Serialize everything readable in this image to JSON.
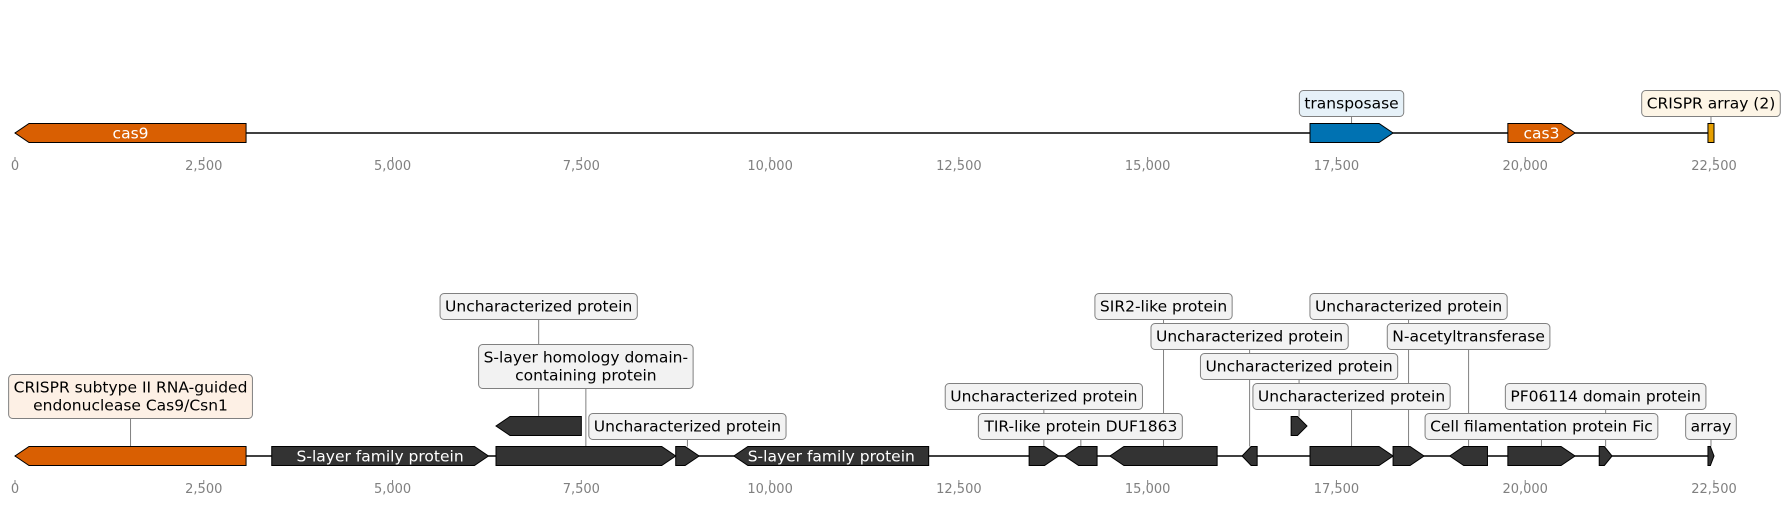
{
  "chart_data": {
    "type": "gene-map",
    "xlim": [
      0,
      22500
    ],
    "tracks": [
      {
        "ticks": [
          0,
          2500,
          5000,
          7500,
          10000,
          12500,
          15000,
          17500,
          20000,
          22500
        ],
        "tick_labels": [
          "0",
          "2,500",
          "5,000",
          "7,500",
          "10,000",
          "12,500",
          "15,000",
          "17,500",
          "20,000",
          "22,500"
        ],
        "features": [
          {
            "start": 0,
            "end": 3060,
            "strand": -1,
            "color": "#d95f02",
            "label": "cas9",
            "label_pos": "inside"
          },
          {
            "start": 17150,
            "end": 18250,
            "strand": 1,
            "color": "#0072b2",
            "label": "transposase",
            "label_pos": "above",
            "box_fill": "#e6f1f8"
          },
          {
            "start": 19770,
            "end": 20660,
            "strand": 1,
            "color": "#d95f02",
            "label": "cas3",
            "label_pos": "inside"
          },
          {
            "start": 22420,
            "end": 22500,
            "strand": 0,
            "color": "#e69f00",
            "label": "CRISPR array (2)",
            "label_pos": "above",
            "box_fill": "#fdf5e6"
          }
        ]
      },
      {
        "ticks": [
          0,
          2500,
          5000,
          7500,
          10000,
          12500,
          15000,
          17500,
          20000,
          22500
        ],
        "tick_labels": [
          "0",
          "2,500",
          "5,000",
          "7,500",
          "10,000",
          "12,500",
          "15,000",
          "17,500",
          "20,000",
          "22,500"
        ],
        "features": [
          {
            "start": 0,
            "end": 3060,
            "strand": -1,
            "color": "#d95f02",
            "label": "CRISPR subtype II RNA-guided\nendonuclease Cas9/Csn1",
            "level": 1,
            "box_fill": "#fdf0e5"
          },
          {
            "start": 3400,
            "end": 6270,
            "strand": 1,
            "color": "#333333",
            "label": "S-layer family protein",
            "label_pos": "inside"
          },
          {
            "start": 6370,
            "end": 7500,
            "strand": -1,
            "color": "#333333",
            "row": 1,
            "label": "Uncharacterized protein",
            "level": 4,
            "box_fill": "#f2f2f2"
          },
          {
            "start": 6370,
            "end": 8750,
            "strand": 1,
            "color": "#333333",
            "label": "S-layer homology domain-\ncontaining protein",
            "level": 2,
            "box_fill": "#f2f2f2"
          },
          {
            "start": 8750,
            "end": 9060,
            "strand": 1,
            "color": "#333333",
            "label": "Uncharacterized protein",
            "level": 0,
            "box_fill": "#f2f2f2"
          },
          {
            "start": 9520,
            "end": 12100,
            "strand": -1,
            "color": "#333333",
            "label": "S-layer family protein",
            "label_pos": "inside"
          },
          {
            "start": 13430,
            "end": 13820,
            "strand": 1,
            "color": "#333333",
            "label": "Uncharacterized protein",
            "level": 1,
            "box_fill": "#f2f2f2"
          },
          {
            "start": 13900,
            "end": 14330,
            "strand": -1,
            "color": "#333333",
            "label": "TIR-like protein DUF1863",
            "level": 0,
            "box_fill": "#f2f2f2"
          },
          {
            "start": 14500,
            "end": 15920,
            "strand": -1,
            "color": "#333333",
            "label": "SIR2-like protein",
            "level": 4,
            "box_fill": "#f2f2f2"
          },
          {
            "start": 16250,
            "end": 16450,
            "strand": -1,
            "color": "#333333",
            "label": "Uncharacterized protein",
            "level": 3,
            "box_fill": "#f2f2f2"
          },
          {
            "start": 16900,
            "end": 17110,
            "strand": 1,
            "color": "#333333",
            "row": 1,
            "label": "Uncharacterized protein",
            "level": 2,
            "box_fill": "#f2f2f2"
          },
          {
            "start": 17150,
            "end": 18250,
            "strand": 1,
            "color": "#333333",
            "label": "Uncharacterized protein",
            "level": 1,
            "box_fill": "#f2f2f2"
          },
          {
            "start": 18250,
            "end": 18660,
            "strand": 1,
            "color": "#333333",
            "label": "Uncharacterized protein",
            "level": 4,
            "box_fill": "#f2f2f2"
          },
          {
            "start": 19000,
            "end": 19500,
            "strand": -1,
            "color": "#333333",
            "label": "N-acetyltransferase",
            "level": 3,
            "box_fill": "#f2f2f2"
          },
          {
            "start": 19770,
            "end": 20660,
            "strand": 1,
            "color": "#333333",
            "label": "Cell filamentation protein Fic",
            "level": 0,
            "box_fill": "#f2f2f2"
          },
          {
            "start": 20980,
            "end": 21150,
            "strand": 1,
            "color": "#333333",
            "label": "PF06114 domain protein",
            "level": 1,
            "box_fill": "#f2f2f2"
          },
          {
            "start": 22420,
            "end": 22500,
            "strand": 1,
            "color": "#333333",
            "label": "array",
            "level": 0,
            "box_fill": "#f2f2f2"
          }
        ]
      }
    ]
  }
}
